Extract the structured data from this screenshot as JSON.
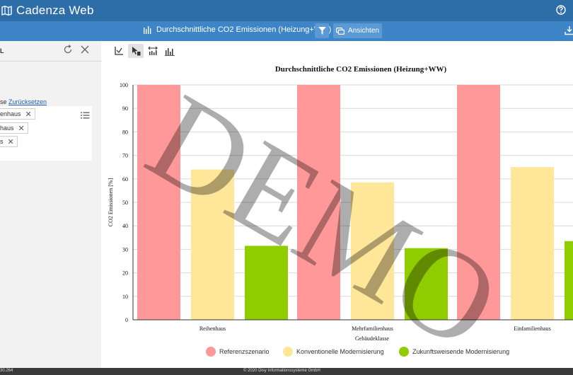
{
  "app": {
    "title": "Cadenza Web"
  },
  "header": {
    "view_title": "Durchschnittliche CO2 Emissionen (Heizung+WW)",
    "views_label": "Ansichten"
  },
  "sidebar": {
    "panel_title": "L",
    "filter_prefix": "se",
    "reset_link": "Zurücksetzen",
    "chips": [
      "enhaus",
      "haus",
      "s"
    ]
  },
  "footer": {
    "version": "30.264",
    "copyright": "© 2020 Disy Informationssysteme GmbH"
  },
  "watermark": "DEMO",
  "colors": {
    "series1": "#ff9999",
    "series2": "#ffe699",
    "series3": "#8fcc00",
    "topbar": "#2e6ea8",
    "subbar": "#3d85c6"
  },
  "chart_data": {
    "type": "bar",
    "title": "Durchschnittliche CO2 Emissionen (Heizung+WW)",
    "xlabel": "Gebäudeklasse",
    "ylabel": "CO2 Emissionen [%]",
    "ylim": [
      0,
      100
    ],
    "yticks": [
      0,
      10,
      20,
      30,
      40,
      50,
      60,
      70,
      80,
      90,
      100
    ],
    "categories": [
      "Reihenhaus",
      "Mehrfamilienhaus",
      "Einfamilienhaus"
    ],
    "series": [
      {
        "name": "Referenzszenario",
        "values": [
          100,
          100,
          100
        ]
      },
      {
        "name": "Konventionelle Modernisierung",
        "values": [
          64,
          58.5,
          65
        ]
      },
      {
        "name": "Zukunftsweisende Modernisierung",
        "values": [
          31.5,
          30.5,
          33.5
        ]
      }
    ],
    "grid": true,
    "legend": "bottom"
  }
}
